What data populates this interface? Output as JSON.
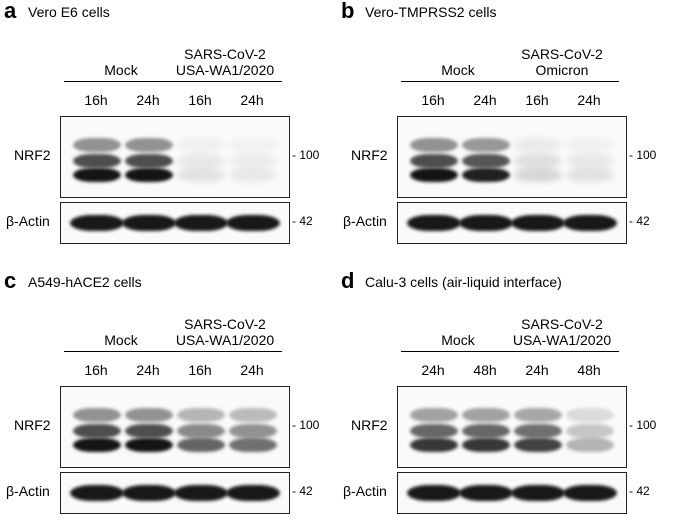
{
  "panels": [
    {
      "letter": "a",
      "cells": "Vero E6 cells",
      "groups": [
        {
          "lines": [
            "Mock"
          ]
        },
        {
          "lines": [
            "SARS-CoV-2",
            "USA-WA1/2020"
          ]
        }
      ],
      "lanes": [
        "16h",
        "24h",
        "16h",
        "24h"
      ],
      "rows": [
        {
          "label": "NRF2",
          "mw": "- 100"
        },
        {
          "label": "β-Actin",
          "mw": "- 42"
        }
      ],
      "nrf2_intensity": [
        1.0,
        1.0,
        0.1,
        0.08
      ]
    },
    {
      "letter": "b",
      "cells": "Vero-TMPRSS2 cells",
      "groups": [
        {
          "lines": [
            "Mock"
          ]
        },
        {
          "lines": [
            "SARS-CoV-2",
            "Omicron"
          ]
        }
      ],
      "lanes": [
        "16h",
        "24h",
        "16h",
        "24h"
      ],
      "rows": [
        {
          "label": "NRF2",
          "mw": "- 100"
        },
        {
          "label": "β-Actin",
          "mw": "- 42"
        }
      ],
      "nrf2_intensity": [
        1.0,
        0.95,
        0.15,
        0.1
      ]
    },
    {
      "letter": "c",
      "cells": "A549-hACE2 cells",
      "groups": [
        {
          "lines": [
            "Mock"
          ]
        },
        {
          "lines": [
            "SARS-CoV-2",
            "USA-WA1/2020"
          ]
        }
      ],
      "lanes": [
        "16h",
        "24h",
        "16h",
        "24h"
      ],
      "rows": [
        {
          "label": "NRF2",
          "mw": "- 100"
        },
        {
          "label": "β-Actin",
          "mw": "- 42"
        }
      ],
      "nrf2_intensity": [
        1.0,
        1.0,
        0.65,
        0.6
      ]
    },
    {
      "letter": "d",
      "cells": "Calu-3 cells (air-liquid interface)",
      "groups": [
        {
          "lines": [
            "Mock"
          ]
        },
        {
          "lines": [
            "SARS-CoV-2",
            "USA-WA1/2020"
          ]
        }
      ],
      "lanes": [
        "24h",
        "48h",
        "24h",
        "48h"
      ],
      "rows": [
        {
          "label": "NRF2",
          "mw": "- 100"
        },
        {
          "label": "β-Actin",
          "mw": "- 42"
        }
      ],
      "nrf2_intensity": [
        0.85,
        0.85,
        0.8,
        0.3
      ]
    }
  ]
}
